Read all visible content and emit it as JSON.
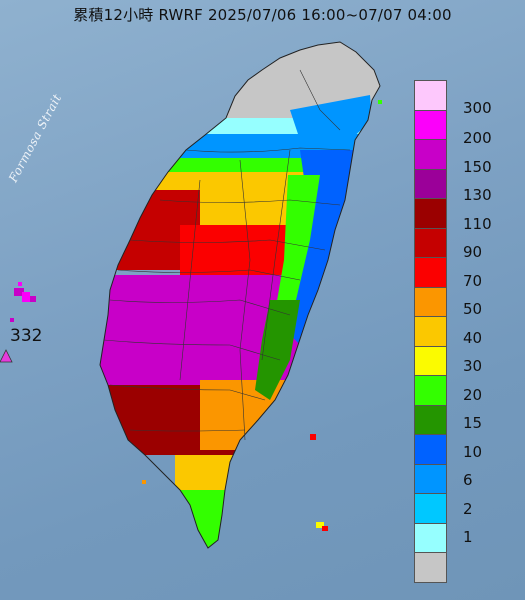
{
  "title": "累積12小時 RWRF 2025/07/06 16:00~07/07 04:00",
  "strait_label": "Formosa Strait",
  "max_marker": {
    "value": "332",
    "icon": "triangle-marker-icon",
    "color": "#e53bdc"
  },
  "legend": [
    {
      "label": "300",
      "color": "#fdc8fc"
    },
    {
      "label": "200",
      "color": "#fb00fa"
    },
    {
      "label": "150",
      "color": "#c800c8"
    },
    {
      "label": "130",
      "color": "#9b0099"
    },
    {
      "label": "110",
      "color": "#9b0000"
    },
    {
      "label": "90",
      "color": "#c50000"
    },
    {
      "label": "70",
      "color": "#fb0000"
    },
    {
      "label": "50",
      "color": "#fb9600"
    },
    {
      "label": "40",
      "color": "#fbc800"
    },
    {
      "label": "30",
      "color": "#fbfb00"
    },
    {
      "label": "20",
      "color": "#33ff00"
    },
    {
      "label": "15",
      "color": "#249500"
    },
    {
      "label": "10",
      "color": "#0062ff"
    },
    {
      "label": "6",
      "color": "#0095ff"
    },
    {
      "label": "2",
      "color": "#00c8ff"
    },
    {
      "label": "1",
      "color": "#96ffff"
    },
    {
      "label": "",
      "color": "#c6c6c6"
    }
  ]
}
